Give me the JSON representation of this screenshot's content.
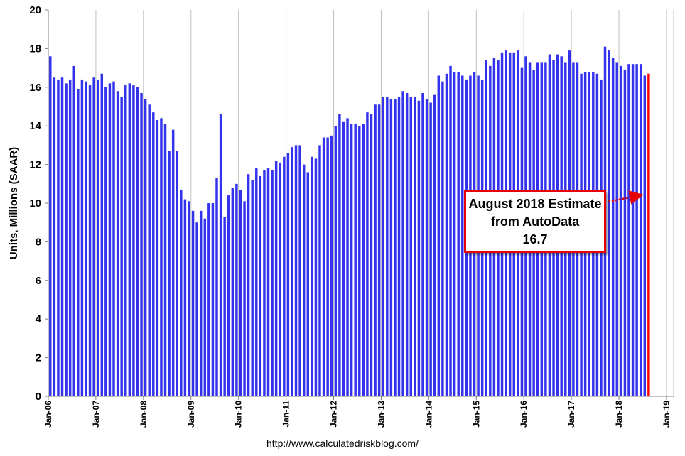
{
  "chart_data": {
    "type": "bar",
    "ylabel": "Units, Millions (SAAR)",
    "ylim": [
      0,
      20
    ],
    "yticks": [
      0,
      2,
      4,
      6,
      8,
      10,
      12,
      14,
      16,
      18,
      20
    ],
    "xticks": [
      "Jan-06",
      "Jan-07",
      "Jan-08",
      "Jan-09",
      "Jan-10",
      "Jan-11",
      "Jan-12",
      "Jan-13",
      "Jan-14",
      "Jan-15",
      "Jan-16",
      "Jan-17",
      "Jan-18",
      "Jan-19"
    ],
    "grid": "vertical",
    "start_month": "Jan-06",
    "series": [
      {
        "color": "#3333ee",
        "values": [
          17.6,
          16.5,
          16.4,
          16.5,
          16.2,
          16.4,
          17.1,
          15.9,
          16.4,
          16.3,
          16.1,
          16.5,
          16.4,
          16.7,
          16.0,
          16.2,
          16.3,
          15.8,
          15.5,
          16.1,
          16.2,
          16.1,
          16.0,
          15.7,
          15.4,
          15.1,
          14.7,
          14.3,
          14.4,
          14.1,
          12.7,
          13.8,
          12.7,
          10.7,
          10.2,
          10.1,
          9.6,
          9.0,
          9.6,
          9.2,
          10.0,
          10.0,
          11.3,
          14.6,
          9.3,
          10.4,
          10.8,
          11.0,
          10.7,
          10.1,
          11.5,
          11.2,
          11.8,
          11.4,
          11.7,
          11.8,
          11.7,
          12.2,
          12.1,
          12.4,
          12.6,
          12.9,
          13.0,
          13.0,
          12.0,
          11.6,
          12.4,
          12.3,
          13.0,
          13.4,
          13.4,
          13.5,
          14.0,
          14.6,
          14.2,
          14.4,
          14.1,
          14.1,
          14.0,
          14.1,
          14.7,
          14.6,
          15.1,
          15.1,
          15.5,
          15.5,
          15.4,
          15.4,
          15.5,
          15.8,
          15.7,
          15.5,
          15.5,
          15.3,
          15.7,
          15.4,
          15.2,
          15.6,
          16.6,
          16.3,
          16.7,
          17.1,
          16.8,
          16.8,
          16.6,
          16.4,
          16.6,
          16.8,
          16.6,
          16.4,
          17.4,
          17.1,
          17.5,
          17.4,
          17.8,
          17.9,
          17.8,
          17.8,
          17.9,
          17.0,
          17.6,
          17.3,
          16.9,
          17.3,
          17.3,
          17.3,
          17.7,
          17.4,
          17.7,
          17.6,
          17.3,
          17.9,
          17.3,
          17.3,
          16.7,
          16.8,
          16.8,
          16.8,
          16.7,
          16.4,
          18.1,
          17.9,
          17.5,
          17.3,
          17.1,
          16.9,
          17.2,
          17.2,
          17.2,
          17.2,
          16.6
        ]
      },
      {
        "color": "#ff0000",
        "values": [
          16.7
        ]
      }
    ]
  },
  "annotation": {
    "line1": "August 2018 Estimate",
    "line2": "from AutoData",
    "line3": "16.7"
  },
  "source": "http://www.calculatedriskblog.com/"
}
